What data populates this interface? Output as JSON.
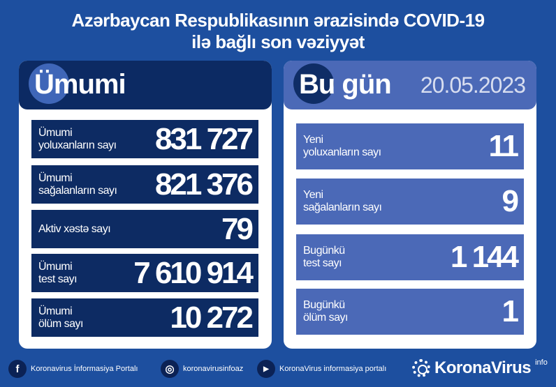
{
  "title": "Azərbaycan Respublikasının ərazisində COVID-19 ilə bağlı son vəziyyət",
  "total": {
    "heading": "Ümumi",
    "rows": [
      {
        "label1": "Ümumi",
        "label2": "yoluxanların sayı",
        "value": "831 727"
      },
      {
        "label1": "Ümumi",
        "label2": "sağalanların sayı",
        "value": "821 376"
      },
      {
        "label1": "Aktiv xəstə sayı",
        "label2": "",
        "value": "79"
      },
      {
        "label1": "Ümumi",
        "label2": "test sayı",
        "value": "7 610 914"
      },
      {
        "label1": "Ümumi",
        "label2": "ölüm sayı",
        "value": "10 272"
      }
    ]
  },
  "today": {
    "heading": "Bu gün",
    "date": "20.05.2023",
    "rows": [
      {
        "label1": "Yeni",
        "label2": "yoluxanların sayı",
        "value": "11"
      },
      {
        "label1": "Yeni",
        "label2": "sağalanların sayı",
        "value": "9"
      },
      {
        "label1": "Bugünkü",
        "label2": "test sayı",
        "value": "1 144"
      },
      {
        "label1": "Bugünkü",
        "label2": "ölüm sayı",
        "value": "1"
      }
    ]
  },
  "footer": {
    "facebook": "Koronavirus İnformasiya Portalı",
    "instagram": "koronavirusinfoaz",
    "youtube": "KoronaVirus informasiya portalı",
    "brand": "KoronaVirus",
    "brand_sup": "info"
  },
  "colors": {
    "background": "#1d4f9f",
    "total_panel": "#0c2a63",
    "today_panel": "#4b69b7"
  }
}
